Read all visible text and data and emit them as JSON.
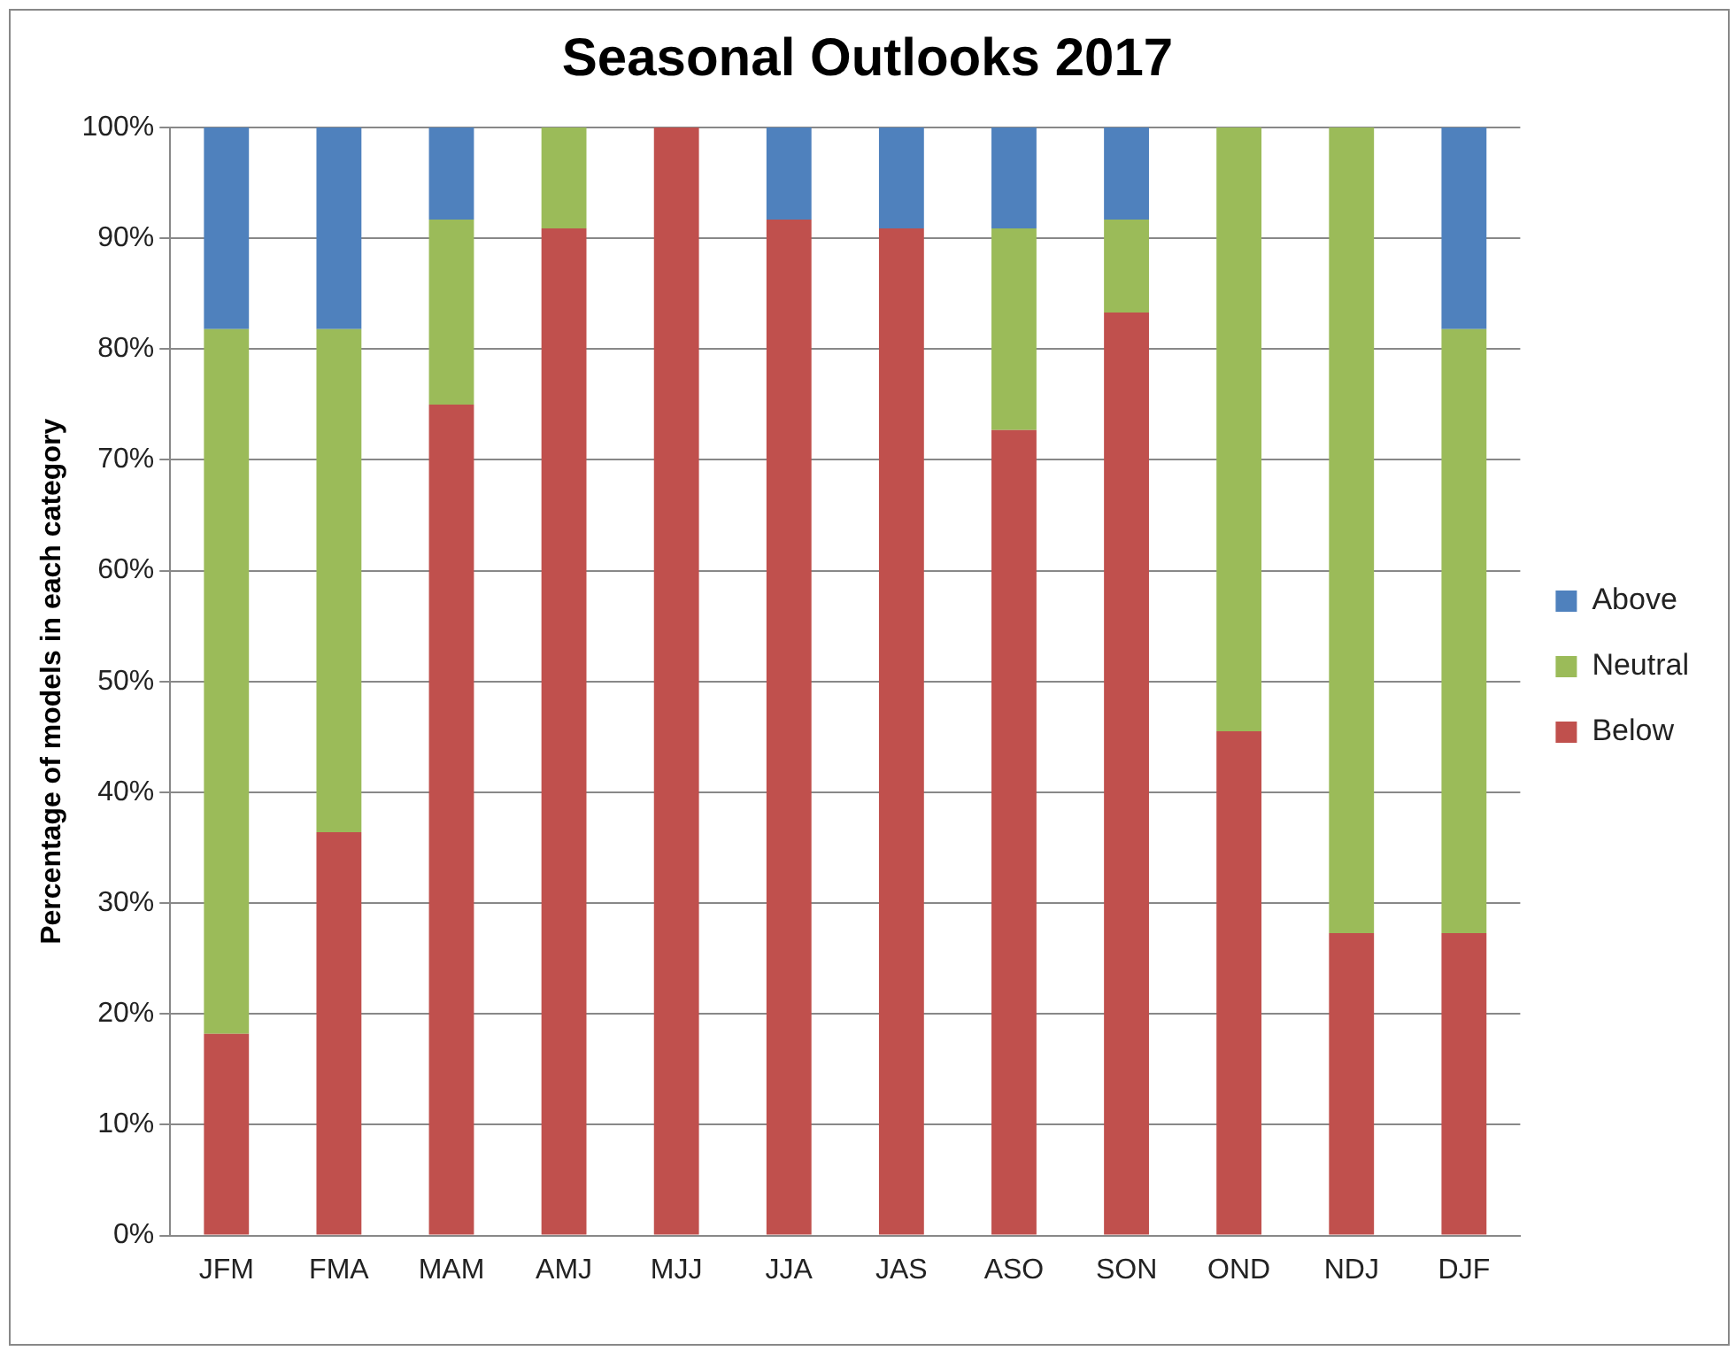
{
  "chart_data": {
    "type": "bar",
    "title": "Seasonal Outlooks 2017",
    "ylabel": "Percentage of models in each category",
    "categories": [
      "JFM",
      "FMA",
      "MAM",
      "AMJ",
      "MJJ",
      "JJA",
      "JAS",
      "ASO",
      "SON",
      "OND",
      "NDJ",
      "DJF"
    ],
    "stacked": true,
    "series": [
      {
        "name": "Below",
        "color": "#c0504d",
        "values": [
          18.2,
          36.4,
          75,
          90.9,
          100,
          91.7,
          90.9,
          72.7,
          83.3,
          45.5,
          27.3,
          27.3
        ]
      },
      {
        "name": "Neutral",
        "color": "#9bbb59",
        "values": [
          63.6,
          45.4,
          16.7,
          9.1,
          0,
          0,
          0,
          18.2,
          8.4,
          54.5,
          72.7,
          54.5
        ]
      },
      {
        "name": "Above",
        "color": "#4f81bd",
        "values": [
          18.2,
          18.2,
          8.3,
          0,
          0,
          8.3,
          9.1,
          9.1,
          8.3,
          0,
          0,
          18.2
        ]
      }
    ],
    "ylim": [
      0,
      100
    ],
    "yticks": [
      {
        "value": 0,
        "label": "0%"
      },
      {
        "value": 10,
        "label": "10%"
      },
      {
        "value": 20,
        "label": "20%"
      },
      {
        "value": 30,
        "label": "30%"
      },
      {
        "value": 40,
        "label": "40%"
      },
      {
        "value": 50,
        "label": "50%"
      },
      {
        "value": 60,
        "label": "60%"
      },
      {
        "value": 70,
        "label": "70%"
      },
      {
        "value": 80,
        "label": "80%"
      },
      {
        "value": 90,
        "label": "90%"
      },
      {
        "value": 100,
        "label": "100%"
      }
    ],
    "grid": "y",
    "legend": "right"
  }
}
